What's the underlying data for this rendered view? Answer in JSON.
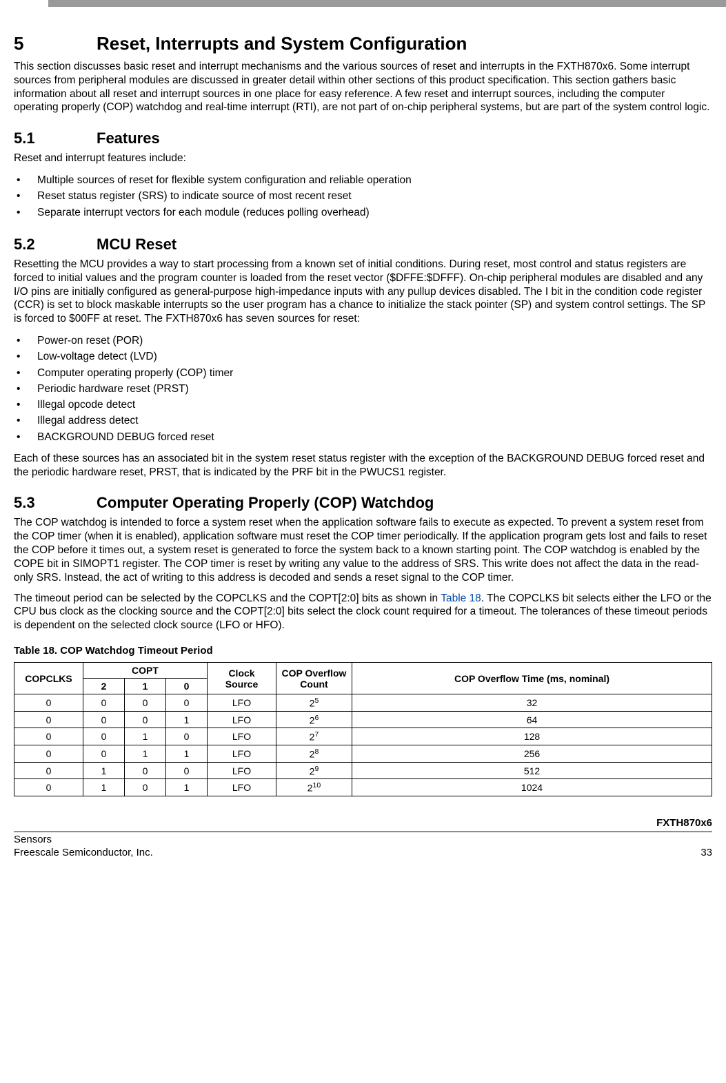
{
  "section": {
    "num": "5",
    "title": "Reset, Interrupts and System Configuration",
    "intro": "This section discusses basic reset and interrupt mechanisms and the various sources of reset and interrupts in the FXTH870x6. Some interrupt sources from peripheral modules are discussed in greater detail within other sections of this product specification. This section gathers basic information about all reset and interrupt sources in one place for easy reference. A few reset and interrupt sources, including the computer operating properly (COP) watchdog and real-time interrupt (RTI), are not part of on-chip peripheral systems, but are part of the system control logic."
  },
  "s51": {
    "num": "5.1",
    "title": "Features",
    "lead": "Reset and interrupt features include:",
    "items": [
      "Multiple sources of reset for flexible system configuration and reliable operation",
      "Reset status register (SRS) to indicate source of most recent reset",
      "Separate interrupt vectors for each module (reduces polling overhead)"
    ]
  },
  "s52": {
    "num": "5.2",
    "title": "MCU Reset",
    "para": "Resetting the MCU provides a way to start processing from a known set of initial conditions. During reset, most control and status registers are forced to initial values and the program counter is loaded from the reset vector ($DFFE:$DFFF). On-chip peripheral modules are disabled and any I/O pins are initially configured as general-purpose high-impedance inputs with any pullup devices disabled. The I bit in the condition code register (CCR) is set to block maskable interrupts so the user program has a chance to initialize the stack pointer (SP) and system control settings. The SP is forced to $00FF at reset. The FXTH870x6 has seven sources for reset:",
    "items": [
      "Power-on reset (POR)",
      "Low-voltage detect (LVD)",
      "Computer operating properly (COP) timer",
      "Periodic hardware reset (PRST)",
      "Illegal opcode detect",
      "Illegal address detect",
      "BACKGROUND DEBUG forced reset"
    ],
    "tail": "Each of these sources has an associated bit in the system reset status register with the exception of the BACKGROUND DEBUG forced reset and the periodic hardware reset, PRST, that is indicated by the PRF bit in the PWUCS1 register."
  },
  "s53": {
    "num": "5.3",
    "title": "Computer Operating Properly (COP) Watchdog",
    "p1": "The COP watchdog is intended to force a system reset when the application software fails to execute as expected. To prevent a system reset from the COP timer (when it is enabled), application software must reset the COP timer periodically. If the application program gets lost and fails to reset the COP before it times out, a system reset is generated to force the system back to a known starting point. The COP watchdog is enabled by the COPE bit in SIMOPT1 register. The COP timer is reset by writing any value to the address of SRS. This write does not affect the data in the read-only SRS. Instead, the act of writing to this address is decoded and sends a reset signal to the COP timer.",
    "p2a": "The timeout period can be selected by the COPCLKS and the COPT[2:0] bits as shown in ",
    "p2link": "Table 18",
    "p2b": ". The COPCLKS bit selects either the LFO or the CPU bus clock as the clocking source and the COPT[2:0] bits select the clock count required for a timeout. The tolerances of these timeout periods is dependent on the selected clock source (LFO or HFO)."
  },
  "table18": {
    "caption": "Table 18. COP Watchdog Timeout Period",
    "header": {
      "copclks": "COPCLKS",
      "copt": "COPT",
      "c2": "2",
      "c1": "1",
      "c0": "0",
      "clock": "Clock Source",
      "overflow": "COP Overflow Count",
      "time": "COP Overflow Time (ms, nominal)"
    },
    "rows": [
      {
        "clk": "0",
        "b2": "0",
        "b1": "0",
        "b0": "0",
        "src": "LFO",
        "base": "2",
        "exp": "5",
        "ms": "32"
      },
      {
        "clk": "0",
        "b2": "0",
        "b1": "0",
        "b0": "1",
        "src": "LFO",
        "base": "2",
        "exp": "6",
        "ms": "64"
      },
      {
        "clk": "0",
        "b2": "0",
        "b1": "1",
        "b0": "0",
        "src": "LFO",
        "base": "2",
        "exp": "7",
        "ms": "128"
      },
      {
        "clk": "0",
        "b2": "0",
        "b1": "1",
        "b0": "1",
        "src": "LFO",
        "base": "2",
        "exp": "8",
        "ms": "256"
      },
      {
        "clk": "0",
        "b2": "1",
        "b1": "0",
        "b0": "0",
        "src": "LFO",
        "base": "2",
        "exp": "9",
        "ms": "512"
      },
      {
        "clk": "0",
        "b2": "1",
        "b1": "0",
        "b0": "1",
        "src": "LFO",
        "base": "2",
        "exp": "10",
        "ms": "1024"
      }
    ],
    "col_widths": [
      "100px",
      "60px",
      "60px",
      "60px",
      "100px",
      "110px",
      "auto"
    ]
  },
  "footer": {
    "product": "FXTH870x6",
    "left1": "Sensors",
    "left2": "Freescale Semiconductor, Inc.",
    "page": "33"
  }
}
